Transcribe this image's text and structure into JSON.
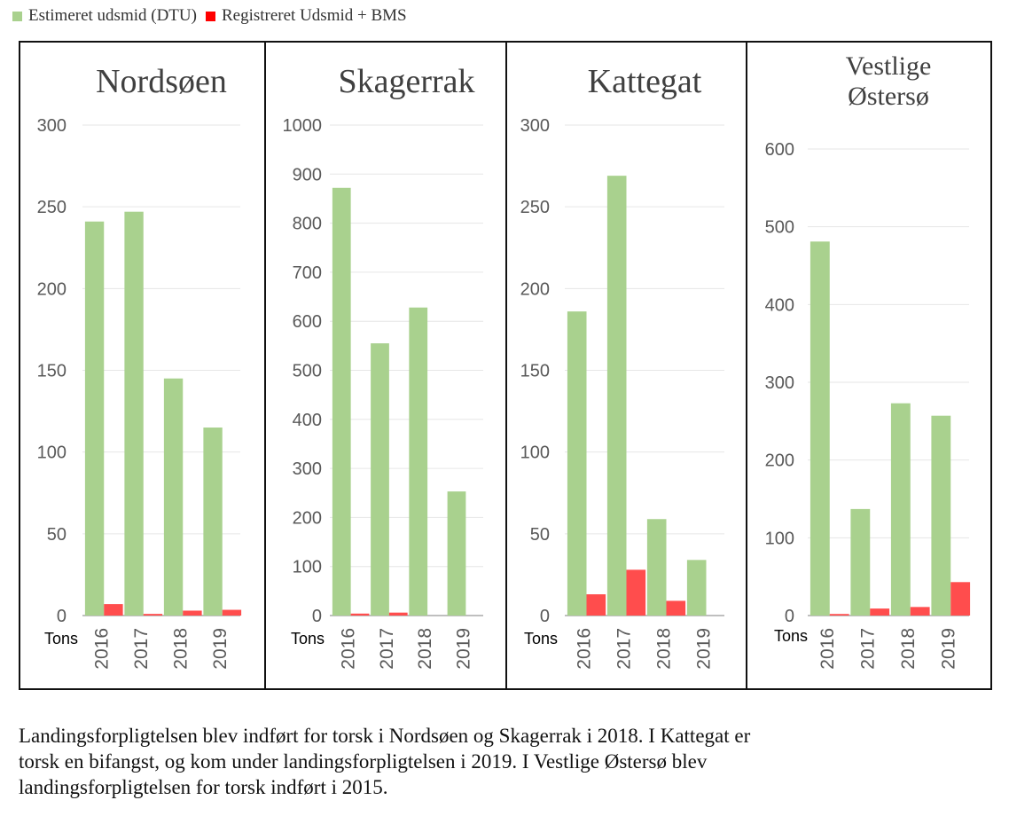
{
  "legend": [
    {
      "label": "Estimeret udsmid (DTU)",
      "color": "#a9d18e"
    },
    {
      "label": "Registreret Udsmid + BMS",
      "color": "#ff0000"
    }
  ],
  "colors": {
    "green": "#a9d18e",
    "red": "#ff4d4d",
    "grid": "#e6e6e6",
    "axis": "#bfbfbf"
  },
  "chart_data": [
    {
      "type": "bar",
      "title": "Nordsøen",
      "ylabel": "Tons",
      "categories": [
        "2016",
        "2017",
        "2018",
        "2019"
      ],
      "ylim": [
        0,
        300
      ],
      "yticks": [
        0,
        50,
        100,
        150,
        200,
        250,
        300
      ],
      "series": [
        {
          "name": "Estimeret udsmid (DTU)",
          "values": [
            241,
            247,
            145,
            115
          ]
        },
        {
          "name": "Registreret Udsmid + BMS",
          "values": [
            7,
            1,
            3,
            3.5
          ]
        }
      ]
    },
    {
      "type": "bar",
      "title": "Skagerrak",
      "ylabel": "Tons",
      "categories": [
        "2016",
        "2017",
        "2018",
        "2019"
      ],
      "ylim": [
        0,
        1000
      ],
      "yticks": [
        0,
        100,
        200,
        300,
        400,
        500,
        600,
        700,
        800,
        900,
        1000
      ],
      "series": [
        {
          "name": "Estimeret udsmid (DTU)",
          "values": [
            872,
            555,
            628,
            253
          ]
        },
        {
          "name": "Registreret Udsmid + BMS",
          "values": [
            4,
            6,
            0,
            0
          ]
        }
      ]
    },
    {
      "type": "bar",
      "title": "Kattegat",
      "ylabel": "Tons",
      "categories": [
        "2016",
        "2017",
        "2018",
        "2019"
      ],
      "ylim": [
        0,
        300
      ],
      "yticks": [
        0,
        50,
        100,
        150,
        200,
        250,
        300
      ],
      "series": [
        {
          "name": "Estimeret udsmid (DTU)",
          "values": [
            186,
            269,
            59,
            34
          ]
        },
        {
          "name": "Registreret Udsmid + BMS",
          "values": [
            13,
            28,
            9,
            0
          ]
        }
      ]
    },
    {
      "type": "bar",
      "title": "Vestlige Østersø",
      "title_lines": [
        "Vestlige",
        "Østersø"
      ],
      "ylabel": "Tons",
      "categories": [
        "2016",
        "2017",
        "2018",
        "2019"
      ],
      "ylim": [
        0,
        600
      ],
      "yticks": [
        0,
        100,
        200,
        300,
        400,
        500,
        600
      ],
      "series": [
        {
          "name": "Estimeret udsmid (DTU)",
          "values": [
            481,
            137,
            273,
            257
          ]
        },
        {
          "name": "Registreret Udsmid + BMS",
          "values": [
            2,
            9,
            11,
            43
          ]
        }
      ]
    }
  ],
  "caption": [
    "Landingsforpligtelsen blev indført for torsk i Nordsøen og Skagerrak i 2018. I Kattegat er",
    "torsk en bifangst, og kom under landingsforpligtelsen i 2019. I Vestlige Østersø blev",
    "landingsforpligtelsen for torsk indført i 2015."
  ]
}
